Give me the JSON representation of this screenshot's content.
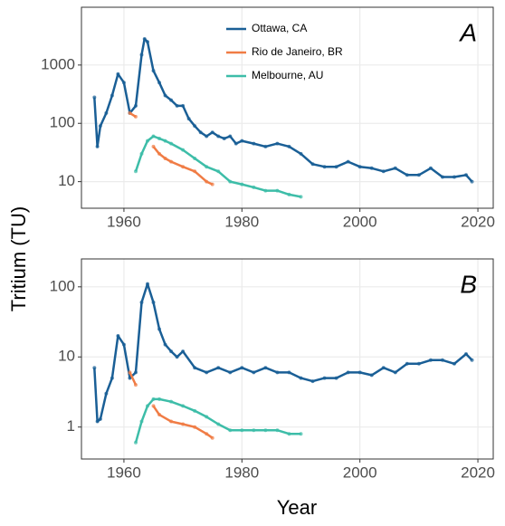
{
  "chart_data": [
    {
      "type": "line",
      "panel_label": "A",
      "ylabel": "Tritium (TU)",
      "log_y": true,
      "grid": true,
      "legend": "top",
      "xlim": [
        1952.8,
        2022.6
      ],
      "xticks": [
        1960,
        1980,
        2000,
        2020
      ],
      "ylim": [
        3.5,
        9800
      ],
      "yticks": [
        10,
        100,
        1000
      ],
      "series": [
        {
          "name": "Ottawa, CA",
          "color": "#1a5f96",
          "x": [
            1955,
            1955.5,
            1956,
            1957,
            1958,
            1959,
            1960,
            1961,
            1962,
            1963,
            1963.5,
            1964,
            1965,
            1966,
            1967,
            1968,
            1969,
            1970,
            1971,
            1972,
            1973,
            1974,
            1975,
            1976,
            1977,
            1978,
            1979,
            1980,
            1982,
            1984,
            1986,
            1988,
            1990,
            1992,
            1994,
            1996,
            1998,
            2000,
            2002,
            2004,
            2006,
            2008,
            2010,
            2012,
            2014,
            2016,
            2018,
            2019
          ],
          "values": [
            280,
            40,
            90,
            150,
            300,
            700,
            500,
            150,
            200,
            1500,
            2800,
            2500,
            800,
            500,
            300,
            250,
            200,
            200,
            120,
            90,
            70,
            60,
            70,
            60,
            55,
            60,
            45,
            50,
            45,
            40,
            45,
            40,
            30,
            20,
            18,
            18,
            22,
            18,
            17,
            15,
            17,
            13,
            13,
            17,
            12,
            12,
            13,
            10
          ]
        },
        {
          "name": "Rio de Janeiro, BR",
          "color": "#f07c45",
          "x": [
            1961,
            1962,
            1963,
            1965,
            1966,
            1967,
            1968,
            1970,
            1972,
            1974,
            1975
          ],
          "values": [
            150,
            130,
            null,
            40,
            30,
            25,
            22,
            18,
            15,
            10,
            9
          ]
        },
        {
          "name": "Melbourne, AU",
          "color": "#3dbda8",
          "x": [
            1962,
            1963,
            1964,
            1965,
            1966,
            1967,
            1968,
            1970,
            1972,
            1974,
            1976,
            1978,
            1980,
            1982,
            1984,
            1986,
            1988,
            1990
          ],
          "values": [
            15,
            30,
            50,
            60,
            55,
            50,
            45,
            35,
            25,
            18,
            15,
            10,
            9,
            8,
            7,
            7,
            6,
            5.5
          ]
        }
      ]
    },
    {
      "type": "line",
      "panel_label": "B",
      "xlabel": "Year",
      "log_y": true,
      "grid": true,
      "xlim": [
        1952.8,
        2022.6
      ],
      "xticks": [
        1960,
        1980,
        2000,
        2020
      ],
      "ylim": [
        0.35,
        250
      ],
      "yticks": [
        1,
        10,
        100
      ],
      "series": [
        {
          "color": "#1a5f96",
          "x": [
            1955,
            1955.5,
            1956,
            1957,
            1958,
            1959,
            1960,
            1961,
            1962,
            1963,
            1964,
            1965,
            1966,
            1967,
            1968,
            1969,
            1970,
            1972,
            1974,
            1976,
            1978,
            1980,
            1982,
            1984,
            1986,
            1988,
            1990,
            1992,
            1994,
            1996,
            1998,
            2000,
            2002,
            2004,
            2006,
            2008,
            2010,
            2012,
            2014,
            2016,
            2018,
            2019
          ],
          "values": [
            7,
            1.2,
            1.3,
            3,
            5,
            20,
            15,
            5,
            6,
            60,
            110,
            60,
            25,
            15,
            12,
            10,
            12,
            7,
            6,
            7,
            6,
            7,
            6,
            7,
            6,
            6,
            5,
            4.5,
            5,
            5,
            6,
            6,
            5.5,
            7,
            6,
            8,
            8,
            9,
            9,
            8,
            11,
            9
          ]
        },
        {
          "color": "#f07c45",
          "x": [
            1961,
            1962,
            1963,
            1965,
            1966,
            1968,
            1970,
            1972,
            1974,
            1975
          ],
          "values": [
            6,
            4,
            null,
            2,
            1.5,
            1.2,
            1.1,
            1,
            0.8,
            0.7
          ]
        },
        {
          "color": "#3dbda8",
          "x": [
            1962,
            1963,
            1964,
            1965,
            1966,
            1968,
            1970,
            1972,
            1974,
            1976,
            1978,
            1980,
            1982,
            1984,
            1986,
            1988,
            1990
          ],
          "values": [
            0.6,
            1.2,
            2,
            2.5,
            2.5,
            2.3,
            2,
            1.7,
            1.4,
            1.1,
            0.9,
            0.9,
            0.9,
            0.9,
            0.9,
            0.8,
            0.8
          ]
        }
      ]
    }
  ]
}
